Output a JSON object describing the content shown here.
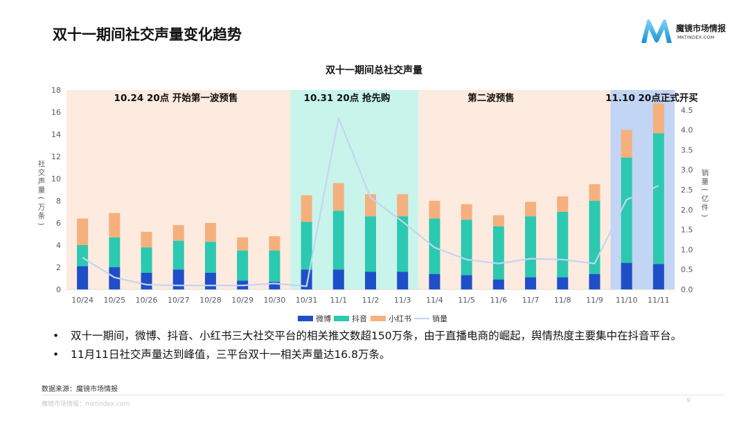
{
  "page": {
    "title": "双十一期间社交声量变化趋势",
    "logo_name": "魔镜市场情报",
    "logo_url": "MKTINDEX.COM",
    "source": "数据来源：魔镜市场情报",
    "footer": "魔镜市场情报：mktindex.com",
    "page_number": "9",
    "bullets": [
      "双十一期间，微博、抖音、小红书三大社交平台的相关推文数超150万条，由于直播电商的崛起，舆情热度主要集中在抖音平台。",
      "11月11日社交声量达到峰值，三平台双十一相关声量达16.8万条。"
    ]
  },
  "colors": {
    "weibo": "#1f4fc8",
    "douyin": "#2cc9b0",
    "xiaohongshu": "#f5b07d",
    "sales": "#c5d4f3",
    "phase1_bg": "#fdebdf",
    "phase2_bg": "#c9f4ec",
    "phase3_bg": "#fdebdf",
    "phase4_bg": "#c3d5f5"
  },
  "chart_data": {
    "type": "bar",
    "title": "双十一期间总社交声量",
    "ylabel": "社交声量（万条）",
    "y2label": "销量（亿件）",
    "ylim": [
      0,
      18
    ],
    "y2lim": [
      0,
      5
    ],
    "yticks": [
      0,
      2,
      4,
      6,
      8,
      10,
      12,
      14,
      16,
      18
    ],
    "y2ticks": [
      "0.0",
      "0.5",
      "1.0",
      "1.5",
      "2.0",
      "2.5",
      "3.0",
      "3.5",
      "4.0",
      "4.5"
    ],
    "categories": [
      "10/24",
      "10/25",
      "10/26",
      "10/27",
      "10/28",
      "10/29",
      "10/30",
      "10/31",
      "11/1",
      "11/2",
      "11/3",
      "11/4",
      "11/5",
      "11/6",
      "11/7",
      "11/8",
      "11/9",
      "11/10",
      "11/11"
    ],
    "series": [
      {
        "name": "微博",
        "kind": "stacked-bar",
        "values": [
          2.1,
          2.0,
          1.5,
          1.8,
          1.5,
          0.8,
          0.7,
          1.8,
          1.8,
          1.6,
          1.6,
          1.4,
          1.3,
          0.9,
          1.1,
          1.1,
          1.4,
          2.4,
          2.3
        ]
      },
      {
        "name": "抖音",
        "kind": "stacked-bar",
        "values": [
          1.9,
          2.7,
          2.3,
          2.6,
          2.8,
          2.7,
          2.8,
          4.3,
          5.3,
          5.0,
          5.0,
          5.0,
          5.0,
          4.8,
          5.5,
          5.9,
          6.6,
          9.5,
          11.8
        ]
      },
      {
        "name": "小红书",
        "kind": "stacked-bar",
        "values": [
          2.4,
          2.2,
          1.4,
          1.4,
          1.7,
          1.2,
          1.3,
          2.4,
          2.5,
          2.0,
          2.0,
          1.6,
          1.4,
          1.0,
          1.3,
          1.4,
          1.5,
          2.5,
          2.7
        ]
      },
      {
        "name": "销量",
        "kind": "line",
        "axis": "right",
        "values": [
          0.8,
          0.3,
          0.12,
          0.1,
          0.1,
          0.1,
          0.15,
          0.08,
          4.3,
          2.3,
          1.7,
          1.05,
          0.75,
          0.65,
          0.77,
          0.75,
          0.65,
          2.25,
          2.6
        ]
      }
    ],
    "phases": [
      {
        "label": "10.24 20点 开始第一波预售",
        "start": 0,
        "end": 6
      },
      {
        "label": "10.31 20点 抢先购",
        "start": 7,
        "end": 10
      },
      {
        "label": "第二波预售",
        "start": 11,
        "end": 16
      },
      {
        "label": "11.10 20点正式开买",
        "start": 17,
        "end": 18
      }
    ],
    "legend_position": "bottom"
  }
}
